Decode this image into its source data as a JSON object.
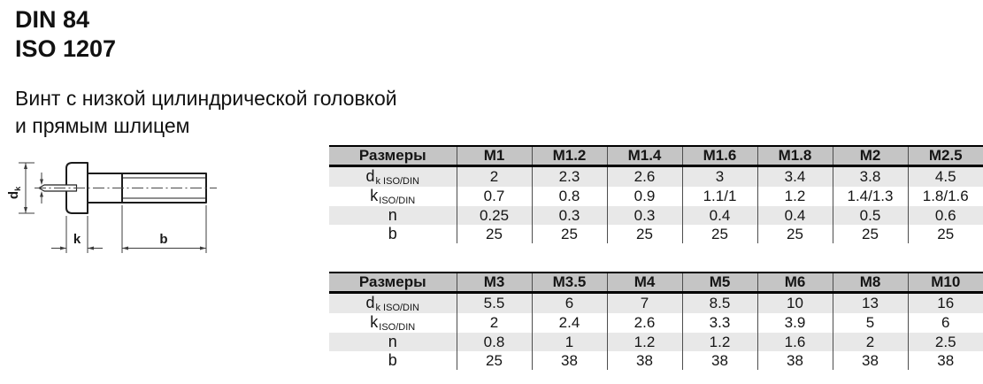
{
  "header": {
    "din": "DIN 84",
    "iso": "ISO 1207",
    "description_line1": "Винт с низкой цилиндрической головкой",
    "description_line2": "и прямым шлицем"
  },
  "drawing": {
    "dk_main": "d",
    "dk_sub": "k",
    "k_label": "k",
    "b_label": "b"
  },
  "tables": [
    {
      "headers": [
        "Размеры",
        "M1",
        "M1.2",
        "M1.4",
        "M1.6",
        "M1.8",
        "M2",
        "M2.5"
      ],
      "rows": [
        {
          "label_main": "d",
          "label_sub": "k ISO/DIN",
          "values": [
            "2",
            "2.3",
            "2.6",
            "3",
            "3.4",
            "3.8",
            "4.5"
          ]
        },
        {
          "label_main": "k",
          "label_sub": "ISO/DIN",
          "values": [
            "0.7",
            "0.8",
            "0.9",
            "1.1/1",
            "1.2",
            "1.4/1.3",
            "1.8/1.6"
          ]
        },
        {
          "label_main": "n",
          "label_sub": "",
          "values": [
            "0.25",
            "0.3",
            "0.3",
            "0.4",
            "0.4",
            "0.5",
            "0.6"
          ]
        },
        {
          "label_main": "b",
          "label_sub": "",
          "values": [
            "25",
            "25",
            "25",
            "25",
            "25",
            "25",
            "25"
          ]
        }
      ]
    },
    {
      "headers": [
        "Размеры",
        "M3",
        "M3.5",
        "M4",
        "M5",
        "M6",
        "M8",
        "M10"
      ],
      "rows": [
        {
          "label_main": "d",
          "label_sub": "k ISO/DIN",
          "values": [
            "5.5",
            "6",
            "7",
            "8.5",
            "10",
            "13",
            "16"
          ]
        },
        {
          "label_main": "k",
          "label_sub": "ISO/DIN",
          "values": [
            "2",
            "2.4",
            "2.6",
            "3.3",
            "3.9",
            "5",
            "6"
          ]
        },
        {
          "label_main": "n",
          "label_sub": "",
          "values": [
            "0.8",
            "1",
            "1.2",
            "1.2",
            "1.6",
            "2",
            "2.5"
          ]
        },
        {
          "label_main": "b",
          "label_sub": "",
          "values": [
            "25",
            "38",
            "38",
            "38",
            "38",
            "38",
            "38"
          ]
        }
      ]
    }
  ],
  "colors": {
    "table_header_bg": "#c5c5c5",
    "table_alt_row_bg": "#e8e8e8",
    "table_border": "#000000",
    "column_separator": "#4d4d4d",
    "text": "#1a1a1a",
    "background": "#ffffff"
  }
}
